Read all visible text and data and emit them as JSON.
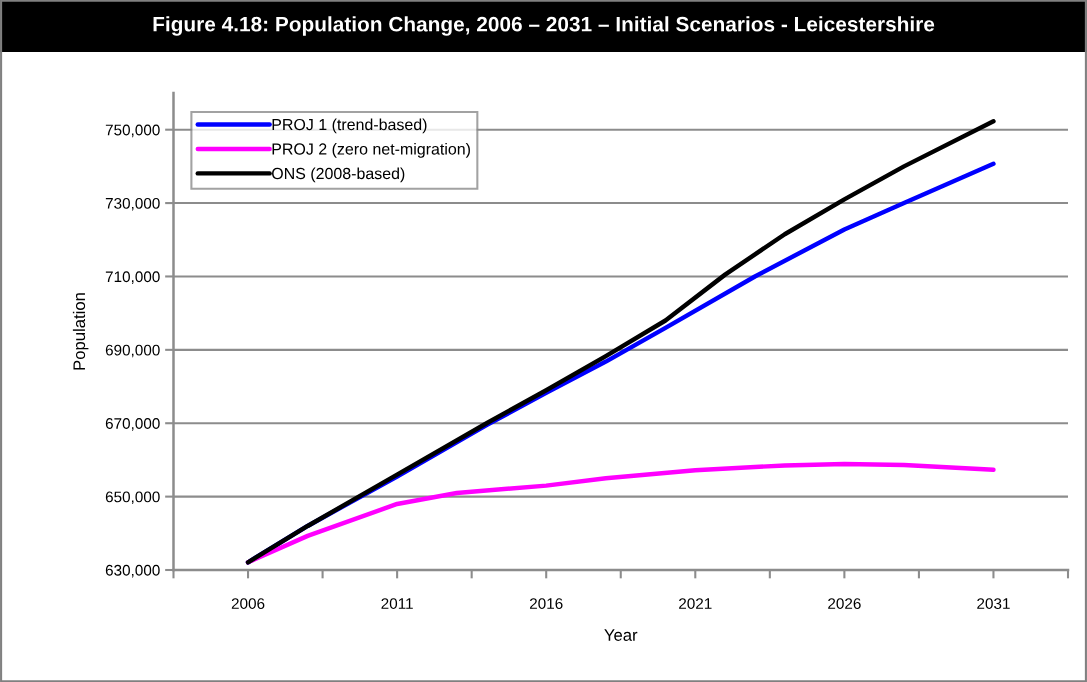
{
  "chart_data": {
    "type": "line",
    "title": "Figure 4.18: Population Change, 2006 – 2031 – Initial Scenarios - Leicestershire",
    "xlabel": "Year",
    "ylabel": "Population",
    "series": [
      {
        "name": "PROJ 1 (trend-based)",
        "color": "#0000ff",
        "x": [
          2006,
          2008,
          2011,
          2014,
          2016,
          2018,
          2020,
          2023,
          2026,
          2028,
          2031
        ],
        "values": [
          632100,
          642000,
          655500,
          669500,
          678300,
          686800,
          696000,
          710000,
          722800,
          730000,
          740700
        ]
      },
      {
        "name": "PROJ 2 (zero net-migration)",
        "color": "#ff00ff",
        "x": [
          2006,
          2008,
          2011,
          2013,
          2016,
          2018,
          2021,
          2024,
          2026,
          2028,
          2031
        ],
        "values": [
          632100,
          639300,
          648000,
          651000,
          653000,
          655000,
          657200,
          658500,
          658900,
          658600,
          657300
        ]
      },
      {
        "name": "ONS (2008-based)",
        "color": "#000000",
        "x": [
          2006,
          2008,
          2011,
          2014,
          2016,
          2018,
          2020,
          2022,
          2024,
          2026,
          2028,
          2031
        ],
        "values": [
          632100,
          642000,
          656000,
          670000,
          679000,
          688300,
          698000,
          710500,
          721500,
          731000,
          740000,
          752300
        ]
      }
    ],
    "xlim": [
      2003.5,
      2033.5
    ],
    "xticks": [
      {
        "value": 2003.5,
        "label": null
      },
      {
        "value": 2006,
        "label": "2006"
      },
      {
        "value": 2008.5,
        "label": null
      },
      {
        "value": 2011,
        "label": "2011"
      },
      {
        "value": 2013.5,
        "label": null
      },
      {
        "value": 2016,
        "label": "2016"
      },
      {
        "value": 2018.5,
        "label": null
      },
      {
        "value": 2021,
        "label": "2021"
      },
      {
        "value": 2023.5,
        "label": null
      },
      {
        "value": 2026,
        "label": "2026"
      },
      {
        "value": 2028.5,
        "label": null
      },
      {
        "value": 2031,
        "label": "2031"
      },
      {
        "value": 2033.5,
        "label": null
      }
    ],
    "ylim": [
      630000,
      760000
    ],
    "yticks": [
      {
        "value": 630000,
        "label": "630,000"
      },
      {
        "value": 650000,
        "label": "650,000"
      },
      {
        "value": 670000,
        "label": "670,000"
      },
      {
        "value": 690000,
        "label": "690,000"
      },
      {
        "value": 710000,
        "label": "710,000"
      },
      {
        "value": 730000,
        "label": "730,000"
      },
      {
        "value": 750000,
        "label": "750,000"
      }
    ],
    "grid": "y",
    "legend": "top left",
    "marker": "none",
    "line_style": "solid"
  }
}
